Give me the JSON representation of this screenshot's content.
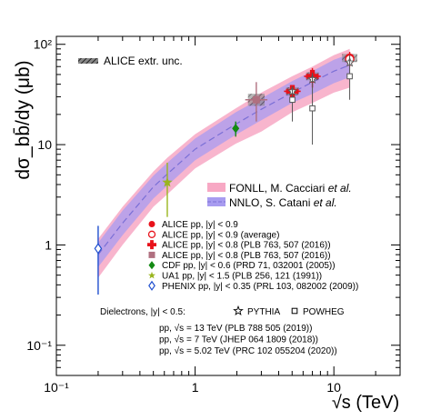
{
  "chart_data": {
    "type": "scatter",
    "xscale": "log",
    "yscale": "log",
    "xlim": [
      0.1,
      30
    ],
    "ylim": [
      0.05,
      120
    ],
    "ylabel": "dσ_bb̄/dy (μb)",
    "xlabel": "√s (TeV)",
    "x_ticks": [
      {
        "value": 0.1,
        "label": "10⁻¹"
      },
      {
        "value": 1,
        "label": "1"
      },
      {
        "value": 10,
        "label": "10"
      }
    ],
    "y_ticks": [
      {
        "value": 0.1,
        "label": "10⁻¹"
      },
      {
        "value": 1,
        "label": "1"
      },
      {
        "value": 10,
        "label": "10"
      },
      {
        "value": 100,
        "label": "10²"
      }
    ],
    "unc_label": "ALICE extr. unc.",
    "theory_bands": [
      {
        "name": "FONLL, M. Cacciari et al.",
        "color": "#f7a8c4",
        "x": [
          0.2,
          0.3,
          0.5,
          0.63,
          1.0,
          1.96,
          3.0,
          5.0,
          7.0,
          10.0,
          13.0
        ],
        "lower": [
          0.47,
          1.0,
          2.4,
          3.2,
          5.8,
          10.2,
          13.5,
          21.0,
          26.0,
          33.0,
          37.0
        ],
        "upper": [
          1.15,
          2.4,
          5.4,
          7.4,
          12.7,
          23.0,
          33.0,
          48.0,
          60.0,
          78.0,
          90.0
        ]
      },
      {
        "name": "NNLO, S. Catani et al.",
        "color": "#a89cf0",
        "x": [
          0.2,
          0.3,
          0.5,
          0.63,
          1.0,
          1.96,
          3.0,
          5.0,
          7.0,
          10.0,
          13.0
        ],
        "lower": [
          0.6,
          1.25,
          2.9,
          3.9,
          7.0,
          12.5,
          17.5,
          26.0,
          32.0,
          41.0,
          47.0
        ],
        "upper": [
          1.05,
          2.2,
          4.9,
          6.6,
          11.5,
          21.0,
          29.0,
          43.0,
          54.0,
          70.0,
          80.0
        ],
        "central": [
          0.8,
          1.65,
          3.8,
          5.1,
          9.0,
          16.0,
          22.5,
          33.0,
          42.0,
          54.0,
          62.0
        ]
      }
    ],
    "series": [
      {
        "name": "ALICE pp, |y| < 0.9",
        "marker": "circle-filled",
        "color": "#e8121b",
        "points": [
          {
            "x": 13.0,
            "y": 73,
            "ylo": 62,
            "yhi": 84
          }
        ]
      },
      {
        "name": "ALICE pp, |y| < 0.9 (average)",
        "marker": "circle-open",
        "color": "#e8121b",
        "points": [
          {
            "x": 13.0,
            "y": 71,
            "ylo": 60,
            "yhi": 82
          }
        ]
      },
      {
        "name": "ALICE pp, |y| < 0.8 (PLB 763, 507 (2016))",
        "marker": "cross-filled",
        "color": "#e8121b",
        "points": [
          {
            "x": 5.02,
            "y": 34,
            "ylo": 29,
            "yhi": 39
          },
          {
            "x": 7.0,
            "y": 48,
            "ylo": 37,
            "yhi": 58
          }
        ]
      },
      {
        "name": "ALICE pp, |y| < 0.8 (PLB 763, 507 (2016))",
        "marker": "square-filled",
        "color": "#b07080",
        "points": [
          {
            "x": 2.76,
            "y": 28,
            "ylo": 17,
            "yhi": 42
          }
        ]
      },
      {
        "name": "CDF pp, |y| < 0.6 (PRD 71, 032001 (2005))",
        "marker": "diamond-filled",
        "color": "#138a13",
        "points": [
          {
            "x": 1.96,
            "y": 14.5,
            "ylo": 12.0,
            "yhi": 17.0
          }
        ]
      },
      {
        "name": "UA1 pp, |y| < 1.5 (PLB 256, 121 (1991))",
        "marker": "star-filled",
        "color": "#9ab51e",
        "points": [
          {
            "x": 0.63,
            "y": 4.2,
            "ylo": 1.9,
            "yhi": 6.6
          }
        ]
      },
      {
        "name": "PHENIX pp, |y| < 0.35 (PRL 103, 082002 (2009))",
        "marker": "diamond-open",
        "color": "#1f4fcf",
        "points": [
          {
            "x": 0.2,
            "y": 0.92,
            "ylo": 0.32,
            "yhi": 1.55
          }
        ]
      },
      {
        "name": "PYTHIA",
        "marker": "star-open",
        "color": "#555555",
        "points": [
          {
            "x": 13.0,
            "y": 66
          },
          {
            "x": 7.0,
            "y": 45
          },
          {
            "x": 5.02,
            "y": 34
          }
        ]
      },
      {
        "name": "POWHEG",
        "marker": "square-open",
        "color": "#555555",
        "points": [
          {
            "x": 13.0,
            "y": 48,
            "ylo": 28,
            "yhi": 78
          },
          {
            "x": 7.0,
            "y": 23,
            "ylo": 10,
            "yhi": 52
          },
          {
            "x": 5.02,
            "y": 28,
            "ylo": 17,
            "yhi": 38
          }
        ]
      }
    ],
    "legend_alice": [
      "ALICE pp, |y| < 0.9",
      "ALICE pp, |y| < 0.9 (average)",
      "ALICE pp, |y| < 0.8 (PLB 763, 507 (2016))",
      "ALICE pp, |y| < 0.8 (PLB 763, 507 (2016))",
      "CDF pp, |y| < 0.6 (PRD 71, 032001 (2005))",
      "UA1 pp, |y| < 1.5 (PLB 256, 121 (1991))",
      "PHENIX pp, |y| < 0.35 (PRL 103, 082002 (2009))"
    ],
    "dielectrons": {
      "label": "Dielectrons, |y| < 0.5:",
      "pythia": "PYTHIA",
      "powheg": "POWHEG",
      "refs": [
        "pp, √s = 13 TeV (PLB 788 505 (2019))",
        "pp, √s = 7 TeV (JHEP 064 1809 (2018))",
        "pp, √s = 5.02 TeV (PRC 102 055204 (2020))"
      ]
    }
  }
}
